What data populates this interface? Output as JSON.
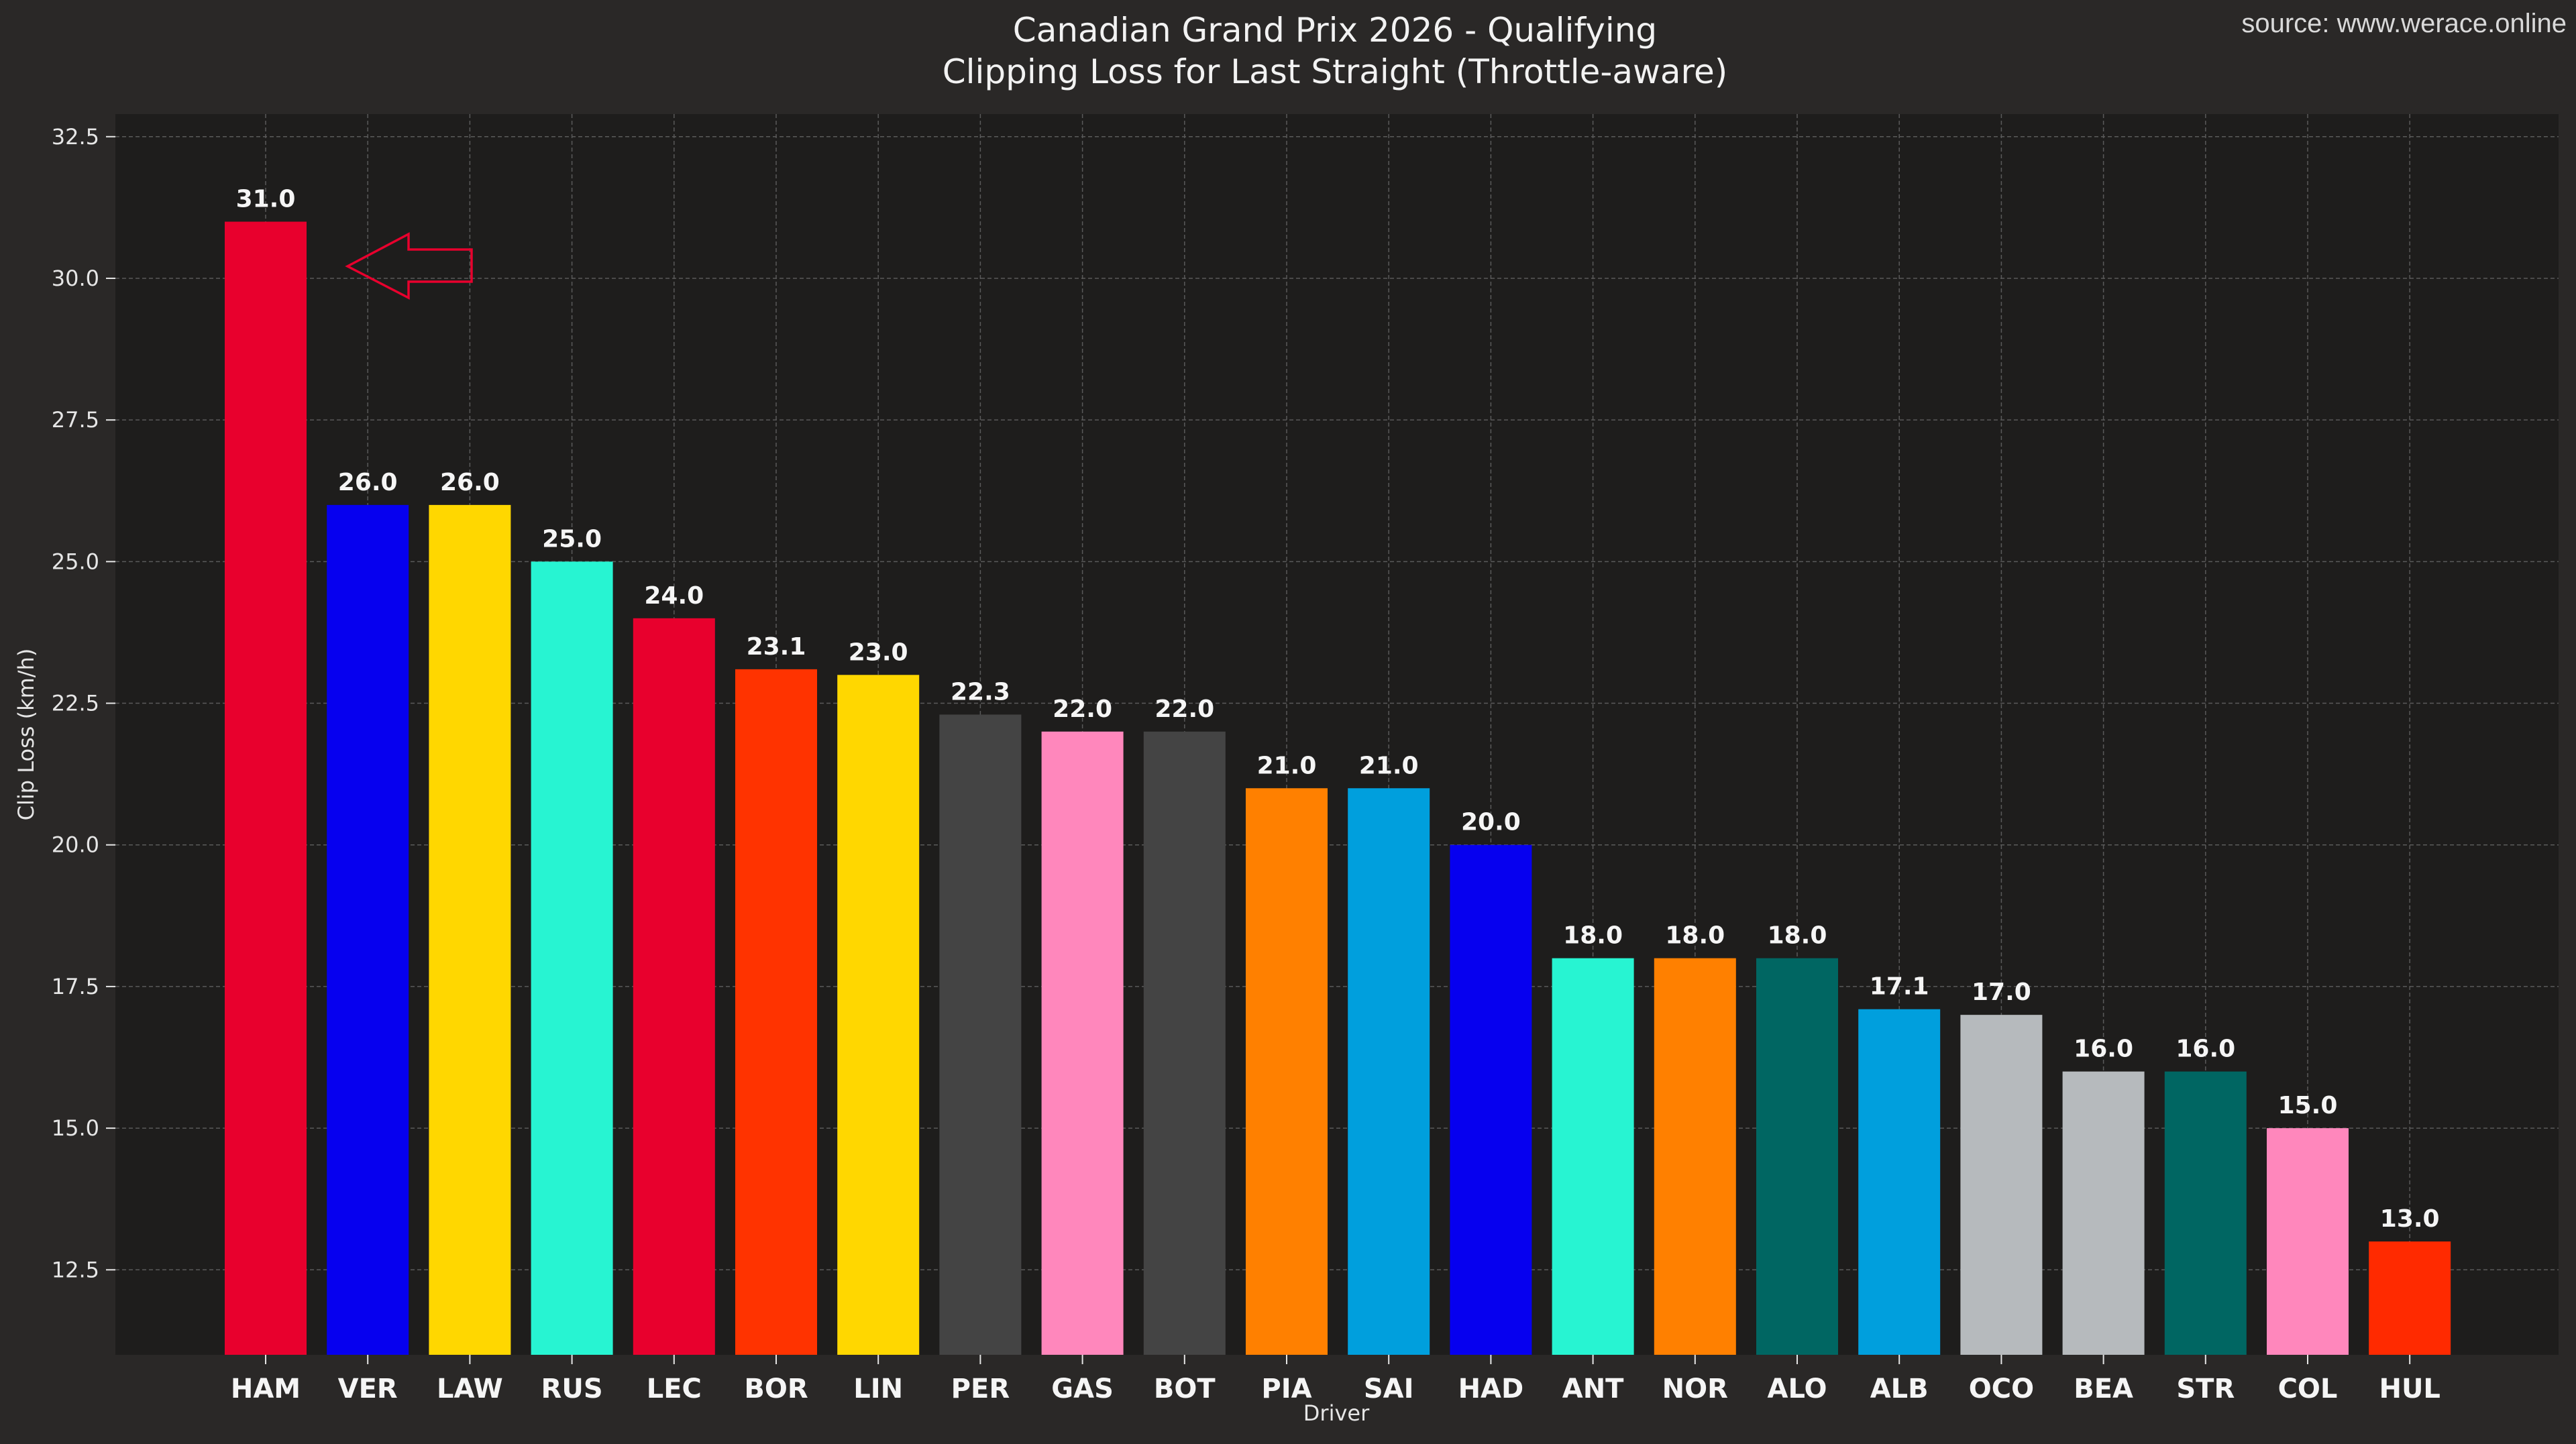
{
  "source": "source: www.werace.online",
  "chart_data": {
    "type": "bar",
    "title": "Canadian Grand Prix 2026 - Qualifying",
    "subtitle": "Clipping Loss for Last Straight (Throttle-aware)",
    "xlabel": "Driver",
    "ylabel": "Clip Loss (km/h)",
    "ylim": [
      11.0,
      32.9
    ],
    "yticks": [
      "12.5",
      "15.0",
      "17.5",
      "20.0",
      "22.5",
      "25.0",
      "27.5",
      "30.0",
      "32.5"
    ],
    "grid": true,
    "categories": [
      "HAM",
      "VER",
      "LAW",
      "RUS",
      "LEC",
      "BOR",
      "LIN",
      "PER",
      "GAS",
      "BOT",
      "PIA",
      "SAI",
      "HAD",
      "ANT",
      "NOR",
      "ALO",
      "ALB",
      "OCO",
      "BEA",
      "STR",
      "COL",
      "HUL"
    ],
    "values": [
      31.0,
      26.0,
      26.0,
      25.0,
      24.0,
      23.1,
      23.0,
      22.3,
      22.0,
      22.0,
      21.0,
      21.0,
      20.0,
      18.0,
      18.0,
      18.0,
      17.1,
      17.0,
      16.0,
      16.0,
      15.0,
      13.0
    ],
    "labels": [
      "31.0",
      "26.0",
      "26.0",
      "25.0",
      "24.0",
      "23.1",
      "23.0",
      "22.3",
      "22.0",
      "22.0",
      "21.0",
      "21.0",
      "20.0",
      "18.0",
      "18.0",
      "18.0",
      "17.1",
      "17.0",
      "16.0",
      "16.0",
      "15.0",
      "13.0"
    ],
    "colors": [
      "#e8002d",
      "#0600ef",
      "#ffd700",
      "#27f4d2",
      "#e8002d",
      "#ff3300",
      "#ffd700",
      "#444444",
      "#ff87bc",
      "#444444",
      "#ff8000",
      "#009fdd",
      "#0600ef",
      "#27f4d2",
      "#ff8000",
      "#006662",
      "#009fdd",
      "#b6babd",
      "#b6babd",
      "#006662",
      "#ff87bc",
      "#ff2a00"
    ],
    "annotation": {
      "type": "arrow",
      "points_to": "HAM",
      "color": "#e8002d"
    }
  }
}
